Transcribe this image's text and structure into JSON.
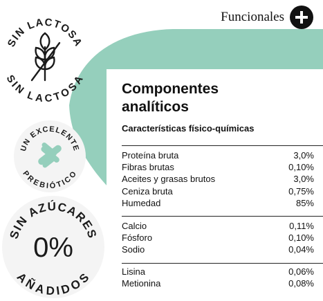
{
  "header": {
    "label": "Funcionales",
    "icon": "plus-icon"
  },
  "badges": {
    "lactose": {
      "top": "SIN LACTOSA",
      "bottom": "SIN LACTOSA",
      "icon": "wheat-crossed-icon"
    },
    "prebiotic": {
      "top": "UN EXCELENTE",
      "bottom": "PREBIÓTICO",
      "icon": "capsules-icon"
    },
    "sugar": {
      "top": "SIN AZÚCARES",
      "center": "0%",
      "bottom": "AÑADIDOS"
    }
  },
  "panel": {
    "title_line1": "Componentes",
    "title_line2": "analíticos",
    "subtitle": "Características físico-químicas",
    "groups": [
      [
        {
          "name": "Proteína bruta",
          "value": "3,0%"
        },
        {
          "name": "Fibras brutas",
          "value": "0,10%"
        },
        {
          "name": "Aceites y grasas brutos",
          "value": "3,0%"
        },
        {
          "name": "Ceniza bruta",
          "value": "0,75%"
        },
        {
          "name": "Humedad",
          "value": "85%"
        }
      ],
      [
        {
          "name": "Calcio",
          "value": "0,11%"
        },
        {
          "name": "Fósforo",
          "value": "0,10%"
        },
        {
          "name": "Sodio",
          "value": "0,04%"
        }
      ],
      [
        {
          "name": "Lisina",
          "value": "0,06%"
        },
        {
          "name": "Metionina",
          "value": "0,08%"
        }
      ]
    ]
  },
  "colors": {
    "mint": "#95cfbc",
    "ink": "#1a1a1a",
    "badge_gray": "#f4f4f4"
  }
}
